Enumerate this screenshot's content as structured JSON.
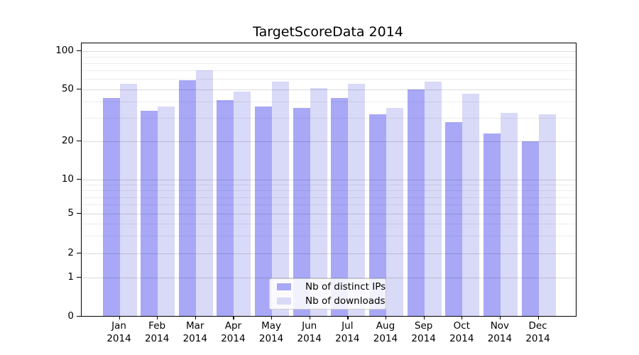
{
  "title": "TargetScoreData 2014",
  "colors": {
    "ips_bar": "#a8a8f7",
    "downloads_bar": "#d9d9f8",
    "grid_major": "rgba(0,0,0,0.14)",
    "grid_minor": "rgba(0,0,0,0.07)",
    "spine": "#000000"
  },
  "legend": {
    "items": [
      {
        "label": "Nb of distinct IPs",
        "color": "#a8a8f7"
      },
      {
        "label": "Nb of downloads",
        "color": "#d9d9f8"
      }
    ]
  },
  "y_axis": {
    "tick_labels": [
      "100",
      "50",
      "20",
      "10",
      "5",
      "2",
      "1",
      "0"
    ],
    "tick_values": [
      100,
      50,
      20,
      10,
      5,
      2,
      1,
      0
    ]
  },
  "x_axis": {
    "tick_top_labels": [
      "Jan",
      "Feb",
      "Mar",
      "Apr",
      "May",
      "Jun",
      "Jul",
      "Aug",
      "Sep",
      "Oct",
      "Nov",
      "Dec"
    ],
    "tick_bottom_label": "2014"
  },
  "chart_data": {
    "type": "bar",
    "title": "TargetScoreData 2014",
    "categories": [
      "Jan 2014",
      "Feb 2014",
      "Mar 2014",
      "Apr 2014",
      "May 2014",
      "Jun 2014",
      "Jul 2014",
      "Aug 2014",
      "Sep 2014",
      "Oct 2014",
      "Nov 2014",
      "Dec 2014"
    ],
    "series": [
      {
        "name": "Nb of distinct IPs",
        "color": "#a8a8f7",
        "values": [
          43,
          34,
          59,
          41,
          37,
          36,
          43,
          32,
          50,
          28,
          23,
          20
        ]
      },
      {
        "name": "Nb of downloads",
        "color": "#d9d9f8",
        "values": [
          55,
          37,
          70,
          48,
          57,
          51,
          55,
          36,
          57,
          46,
          33,
          32
        ]
      }
    ],
    "xlabel": "",
    "ylabel": "",
    "yscale": "symlog",
    "y_major_ticks": [
      0,
      1,
      2,
      5,
      10,
      20,
      50,
      100
    ],
    "y_minor_ticks": [
      3,
      4,
      6,
      7,
      8,
      9,
      30,
      40,
      60,
      70,
      80,
      90
    ],
    "ylim": [
      0,
      115
    ],
    "grid": true,
    "legend_position": "lower center"
  }
}
